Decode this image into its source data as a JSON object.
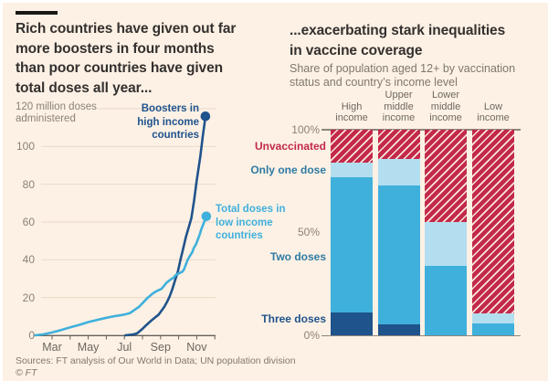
{
  "colors": {
    "background": "#fdf1e5",
    "title_text": "#33302e",
    "muted_text": "#80786d",
    "axis_text": "#8a8278",
    "axis_line": "#66605b",
    "gridline": "#e9d8c9",
    "navy": "#1f538c",
    "bright_blue": "#3fb0dc",
    "pale_blue": "#b3def0",
    "red": "#c3294a",
    "stripe": "#f9e8dc",
    "label_steel_blue": "#2f7ba3"
  },
  "left_panel": {
    "title": "Rich countries have given out far\nmore boosters in four months\nthan poor countries have given\ntotal doses all year...",
    "sources_line": "Sources: FT analysis of Our World in Data; UN population division",
    "copyright": "© FT"
  },
  "right_panel": {
    "title": "...exacerbating stark inequalities\nin vaccine coverage",
    "subtitle": "Share of population aged 12+ by vaccination\nstatus and country’s income level"
  },
  "chart_data": [
    {
      "type": "line",
      "title": "Rich countries have given out far more boosters in four months than poor countries have given total doses all year...",
      "ylabel": "120 million doses administered",
      "ylabel_display": "120 million doses\nadministered",
      "ylim": [
        0,
        120
      ],
      "yticks": [
        0,
        20,
        40,
        60,
        80,
        100
      ],
      "x_unit": "months of 2021 (2 = Mar, 10 = Nov)",
      "xlim": [
        1,
        11.1
      ],
      "xticks": [
        {
          "x": 2,
          "label": "Mar"
        },
        {
          "x": 4,
          "label": "May"
        },
        {
          "x": 6,
          "label": "Jul"
        },
        {
          "x": 8,
          "label": "Sep"
        },
        {
          "x": 10,
          "label": "Nov"
        }
      ],
      "minor_tick_x": [
        2,
        3,
        4,
        5,
        6,
        7,
        8,
        9,
        10,
        11
      ],
      "grid": true,
      "series": [
        {
          "name": "Boosters in high income countries",
          "label": "Boosters in\nhigh income\ncountries",
          "color": "#1f538c",
          "end_value": 116,
          "points": [
            [
              6.05,
              0
            ],
            [
              6.45,
              0.4
            ],
            [
              6.7,
              1
            ],
            [
              6.95,
              3
            ],
            [
              7.2,
              5.3
            ],
            [
              7.45,
              7.5
            ],
            [
              7.7,
              9.5
            ],
            [
              7.9,
              11
            ],
            [
              8.05,
              13
            ],
            [
              8.2,
              15
            ],
            [
              8.35,
              17.5
            ],
            [
              8.5,
              20.5
            ],
            [
              8.65,
              24.5
            ],
            [
              8.8,
              29
            ],
            [
              8.95,
              33.5
            ],
            [
              9.1,
              40
            ],
            [
              9.25,
              46
            ],
            [
              9.4,
              52
            ],
            [
              9.55,
              57
            ],
            [
              9.7,
              62
            ],
            [
              9.85,
              71
            ],
            [
              10.0,
              82
            ],
            [
              10.2,
              95
            ],
            [
              10.33,
              105
            ],
            [
              10.43,
              112
            ],
            [
              10.48,
              116
            ]
          ]
        },
        {
          "name": "Total doses in low income countries",
          "label": "Total doses in\nlow income\ncountries",
          "color": "#3fb0dc",
          "end_value": 63,
          "points": [
            [
              1.05,
              0
            ],
            [
              1.5,
              0.5
            ],
            [
              2,
              1.5
            ],
            [
              2.5,
              2.8
            ],
            [
              3,
              4.2
            ],
            [
              3.5,
              5.5
            ],
            [
              4,
              7
            ],
            [
              4.5,
              8.2
            ],
            [
              5,
              9.3
            ],
            [
              5.5,
              10.2
            ],
            [
              6,
              11
            ],
            [
              6.3,
              11.7
            ],
            [
              6.55,
              13.4
            ],
            [
              6.8,
              15
            ],
            [
              7.05,
              17.5
            ],
            [
              7.3,
              20
            ],
            [
              7.55,
              22
            ],
            [
              7.8,
              23.5
            ],
            [
              8.05,
              24.6
            ],
            [
              8.2,
              26.3
            ],
            [
              8.35,
              28
            ],
            [
              8.55,
              29.5
            ],
            [
              8.7,
              30.4
            ],
            [
              8.85,
              32
            ],
            [
              9.05,
              33
            ],
            [
              9.2,
              33.7
            ],
            [
              9.3,
              35
            ],
            [
              9.4,
              37.5
            ],
            [
              9.5,
              40
            ],
            [
              9.65,
              42.5
            ],
            [
              9.75,
              44
            ],
            [
              9.85,
              46.5
            ],
            [
              9.95,
              48
            ],
            [
              10.05,
              50.5
            ],
            [
              10.15,
              53
            ],
            [
              10.25,
              56
            ],
            [
              10.35,
              58.5
            ],
            [
              10.45,
              61
            ],
            [
              10.53,
              63
            ]
          ]
        }
      ]
    },
    {
      "type": "bar",
      "variant": "stacked_percent",
      "title": "...exacerbating stark inequalities in vaccine coverage",
      "subtitle": "Share of population aged 12+ by vaccination status and country’s income level",
      "unit": "%",
      "ylim": [
        0,
        100
      ],
      "yticks": [
        {
          "label": "100%",
          "value": 100
        },
        {
          "label": "50%",
          "value": 50
        },
        {
          "label": "0%",
          "value": 0
        }
      ],
      "categories": [
        "High\nincome",
        "Upper\nmiddle\nincome",
        "Lower\nmiddle\nincome",
        "Low\nincome"
      ],
      "series": [
        {
          "name": "Three doses",
          "color": "#1f538c",
          "label_color": "#1f538c",
          "hatch": false,
          "values": [
            11,
            5.5,
            0,
            0
          ]
        },
        {
          "name": "Two doses",
          "color": "#3fb0dc",
          "label_color": "#2f7ba3",
          "hatch": false,
          "values": [
            66,
            67.5,
            34,
            6
          ]
        },
        {
          "name": "Only one dose",
          "color": "#b3def0",
          "label_color": "#2f7ba3",
          "hatch": false,
          "values": [
            7,
            13,
            21,
            4.5
          ]
        },
        {
          "name": "Unvaccinated",
          "color": "#c3294a",
          "label_color": "#c3294a",
          "hatch": true,
          "stripe_color": "#f9e8dc",
          "values": [
            16,
            14,
            45,
            89.5
          ]
        }
      ]
    }
  ]
}
